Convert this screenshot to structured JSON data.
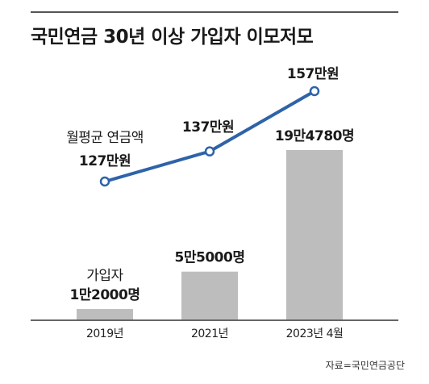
{
  "title": "국민연금 30년 이상 가입자 이모저모",
  "source": "자료=국민연금공단",
  "chart_data": {
    "type": "bar",
    "title": "국민연금 30년 이상 가입자 이모저모",
    "categories": [
      "2019년",
      "2021년",
      "2023년 4월"
    ],
    "series": [
      {
        "name": "가입자",
        "kind": "bar",
        "values": [
          12000,
          55000,
          194780
        ],
        "labels": [
          "1만2000명",
          "5만5000명",
          "19만4780명"
        ],
        "color": "#bdbdbd"
      },
      {
        "name": "월평균 연금액",
        "kind": "line",
        "values": [
          127,
          137,
          157
        ],
        "labels": [
          "127만원",
          "137만원",
          "157만원"
        ],
        "color": "#2e63a8"
      }
    ]
  }
}
